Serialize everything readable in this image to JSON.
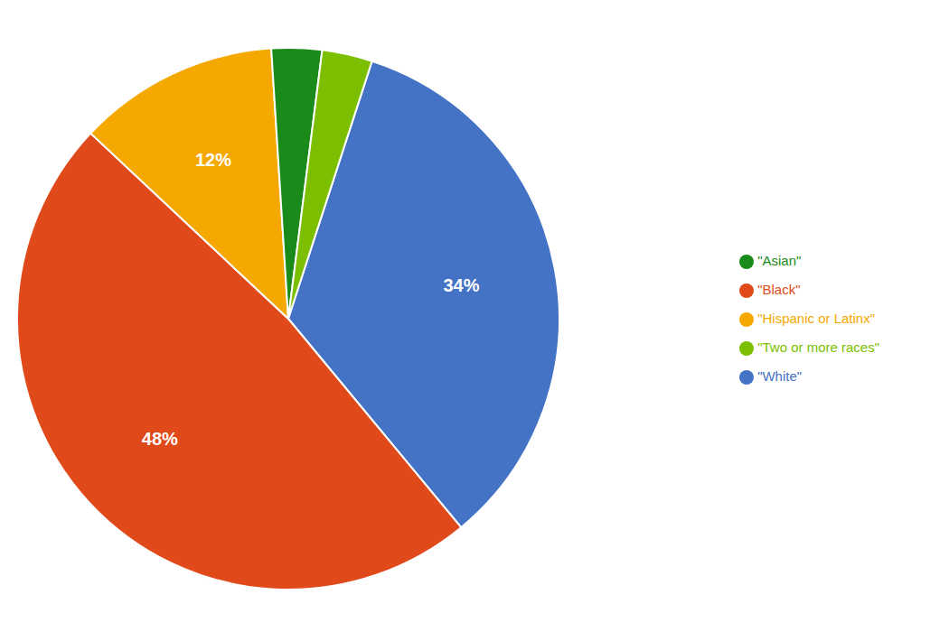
{
  "chart_data": {
    "type": "pie",
    "categories": [
      "\"White\"",
      "\"Black\"",
      "\"Hispanic or Latinx\"",
      "\"Asian\"",
      "\"Two or more races\""
    ],
    "values": [
      34,
      48,
      12,
      3,
      3
    ],
    "value_labels": [
      "34%",
      "48%",
      "12%",
      null,
      null
    ],
    "colors": [
      "#4472C4",
      "#E04A1A",
      "#F5A800",
      "#1A8A1A",
      "#7CBF00"
    ],
    "data_labels": true,
    "legend": "right"
  }
}
